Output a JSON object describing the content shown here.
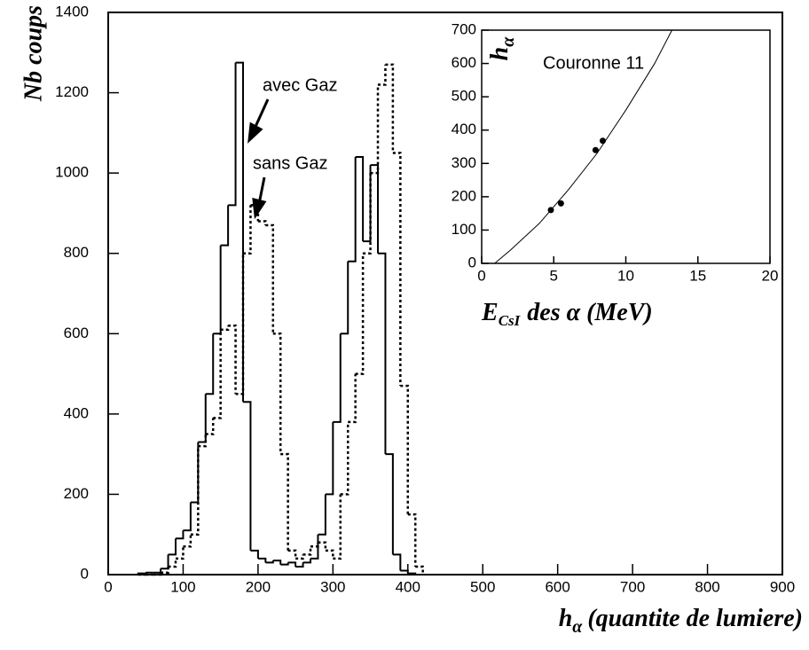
{
  "chart_data": [
    {
      "type": "histogram",
      "ylabel": "Nb coups",
      "xlabel": {
        "symbol": "h",
        "subscript": "α",
        "text": "(quantite de lumiere)"
      },
      "bins": [
        40,
        50,
        60,
        70,
        80,
        90,
        100,
        110,
        120,
        130,
        140,
        150,
        160,
        170,
        180,
        190,
        200,
        210,
        220,
        230,
        240,
        250,
        260,
        270,
        280,
        290,
        300,
        310,
        320,
        330,
        340,
        350,
        360,
        370,
        380,
        390,
        400,
        410,
        420
      ],
      "series": [
        {
          "name": "avec Gaz",
          "color": "#000000",
          "style": "solid",
          "values": [
            3,
            5,
            5,
            15,
            50,
            90,
            110,
            180,
            330,
            450,
            600,
            820,
            920,
            1275,
            430,
            60,
            40,
            30,
            35,
            25,
            30,
            20,
            30,
            40,
            100,
            200,
            380,
            600,
            780,
            1040,
            830,
            1020,
            800,
            300,
            50,
            10,
            3,
            0
          ]
        },
        {
          "name": "sans Gaz",
          "color": "#000000",
          "style": "dotted",
          "values": [
            0,
            0,
            0,
            5,
            20,
            40,
            70,
            100,
            320,
            350,
            390,
            610,
            620,
            450,
            800,
            920,
            880,
            870,
            600,
            300,
            60,
            40,
            50,
            70,
            80,
            60,
            40,
            200,
            380,
            500,
            800,
            1000,
            1220,
            1270,
            1050,
            470,
            150,
            20
          ]
        }
      ],
      "xlim": [
        0,
        900
      ],
      "xticks": [
        0,
        100,
        200,
        300,
        400,
        500,
        600,
        700,
        800,
        900
      ],
      "ylim": [
        0,
        1400
      ],
      "yticks": [
        0,
        200,
        400,
        600,
        800,
        1000,
        1200,
        1400
      ]
    },
    {
      "type": "scatter",
      "annotation": "Couronne 11",
      "ylabel": {
        "symbol": "h",
        "subscript": "α"
      },
      "xlabel": {
        "symbol": "E",
        "subscript": "CsI",
        "text": "des α (MeV)"
      },
      "series": [
        {
          "style": "markers",
          "color": "#000000",
          "x": [
            4.8,
            5.5,
            7.9,
            8.4
          ],
          "values": [
            160,
            180,
            340,
            368
          ]
        },
        {
          "style": "line",
          "color": "#000000",
          "x": [
            0.9,
            2,
            4,
            6,
            8,
            10,
            12,
            13.2
          ],
          "values": [
            0,
            40,
            120,
            220,
            330,
            460,
            600,
            700
          ]
        }
      ],
      "xlim": [
        0,
        20
      ],
      "xticks": [
        0,
        5,
        10,
        15,
        20
      ],
      "ylim": [
        0,
        700
      ],
      "yticks": [
        0,
        100,
        200,
        300,
        400,
        500,
        600,
        700
      ]
    }
  ]
}
